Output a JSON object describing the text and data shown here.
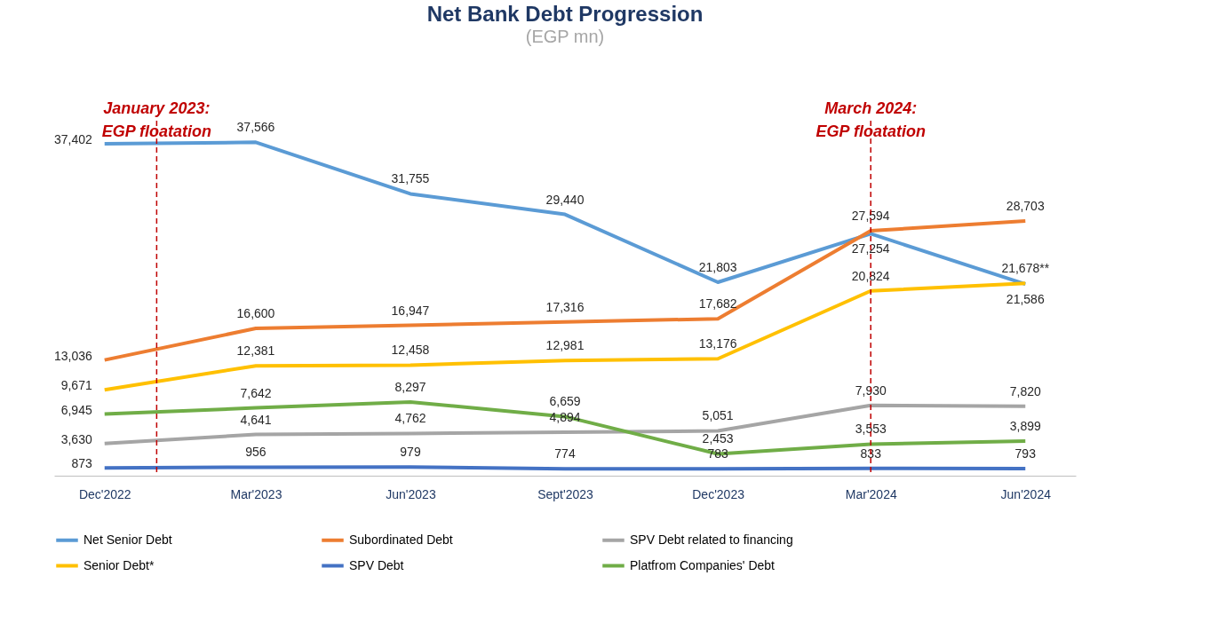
{
  "chart_data": {
    "type": "line",
    "title": "Net Bank Debt Progression",
    "subtitle": "(EGP mn)",
    "x": [
      "2022-12",
      "2023-03",
      "2023-06",
      "2023-09",
      "2023-12",
      "2024-03",
      "2024-06"
    ],
    "xlim": [
      "2022-11",
      "2024-07"
    ],
    "xticks": [
      {
        "value": "2022-12",
        "label": "Dec'2022"
      },
      {
        "value": "2023-03",
        "label": "Mar'2023"
      },
      {
        "value": "2023-06",
        "label": "Jun'2023"
      },
      {
        "value": "2023-09",
        "label": "Sept'2023"
      },
      {
        "value": "2023-12",
        "label": "Dec'2023"
      },
      {
        "value": "2024-03",
        "label": "Mar'2024"
      },
      {
        "value": "2024-06",
        "label": "Jun'2024"
      }
    ],
    "series": [
      {
        "name": "Net Senior Debt",
        "color": "#5b9bd5",
        "values": [
          37402,
          37566,
          31755,
          29440,
          21803,
          27254,
          21586
        ],
        "value_labels": [
          "37,402",
          "37,566",
          "31,755",
          "29,440",
          "21,803",
          "27,254",
          "21,586"
        ]
      },
      {
        "name": "Subordinated Debt",
        "color": "#ed7d31",
        "values": [
          13036,
          16600,
          16947,
          17316,
          17682,
          27594,
          28703
        ],
        "value_labels": [
          "13,036",
          "16,600",
          "16,947",
          "17,316",
          "17,682",
          "27,594",
          "28,703"
        ]
      },
      {
        "name": "SPV Debt related to financing",
        "color": "#a5a5a5",
        "values": [
          3630,
          4641,
          4762,
          4894,
          5051,
          7930,
          7820
        ],
        "value_labels": [
          "3,630",
          "4,641",
          "4,762",
          "4,894",
          "5,051",
          "7,930",
          "7,820"
        ]
      },
      {
        "name": "Senior Debt*",
        "color": "#ffc000",
        "values": [
          9671,
          12381,
          12458,
          12981,
          13176,
          20824,
          21678
        ],
        "value_labels": [
          "9,671",
          "12,381",
          "12,458",
          "12,981",
          "13,176",
          "20,824",
          "21,678**"
        ]
      },
      {
        "name": "SPV Debt",
        "color": "#4472c4",
        "values": [
          873,
          956,
          979,
          774,
          783,
          833,
          793
        ],
        "value_labels": [
          "873",
          "956",
          "979",
          "774",
          "783",
          "833",
          "793"
        ]
      },
      {
        "name": "Platfrom Companies' Debt",
        "color": "#70ad47",
        "values": [
          6945,
          7642,
          8297,
          6659,
          2453,
          3553,
          3899
        ],
        "value_labels": [
          "6,945",
          "7,642",
          "8,297",
          "6,659",
          "2,453",
          "3,553",
          "3,899"
        ]
      }
    ],
    "ref_lines": [
      {
        "axis": "x",
        "value": "2023-01",
        "label": "January 2023:\nEGP floatation",
        "color": "#c00000",
        "line_style": "dashed"
      },
      {
        "axis": "x",
        "value": "2024-03",
        "label": "March 2024:\nEGP floatation",
        "color": "#c00000",
        "line_style": "dashed"
      }
    ],
    "legend": "bottom",
    "grid": false,
    "line_style": "solid",
    "marker": "none"
  }
}
